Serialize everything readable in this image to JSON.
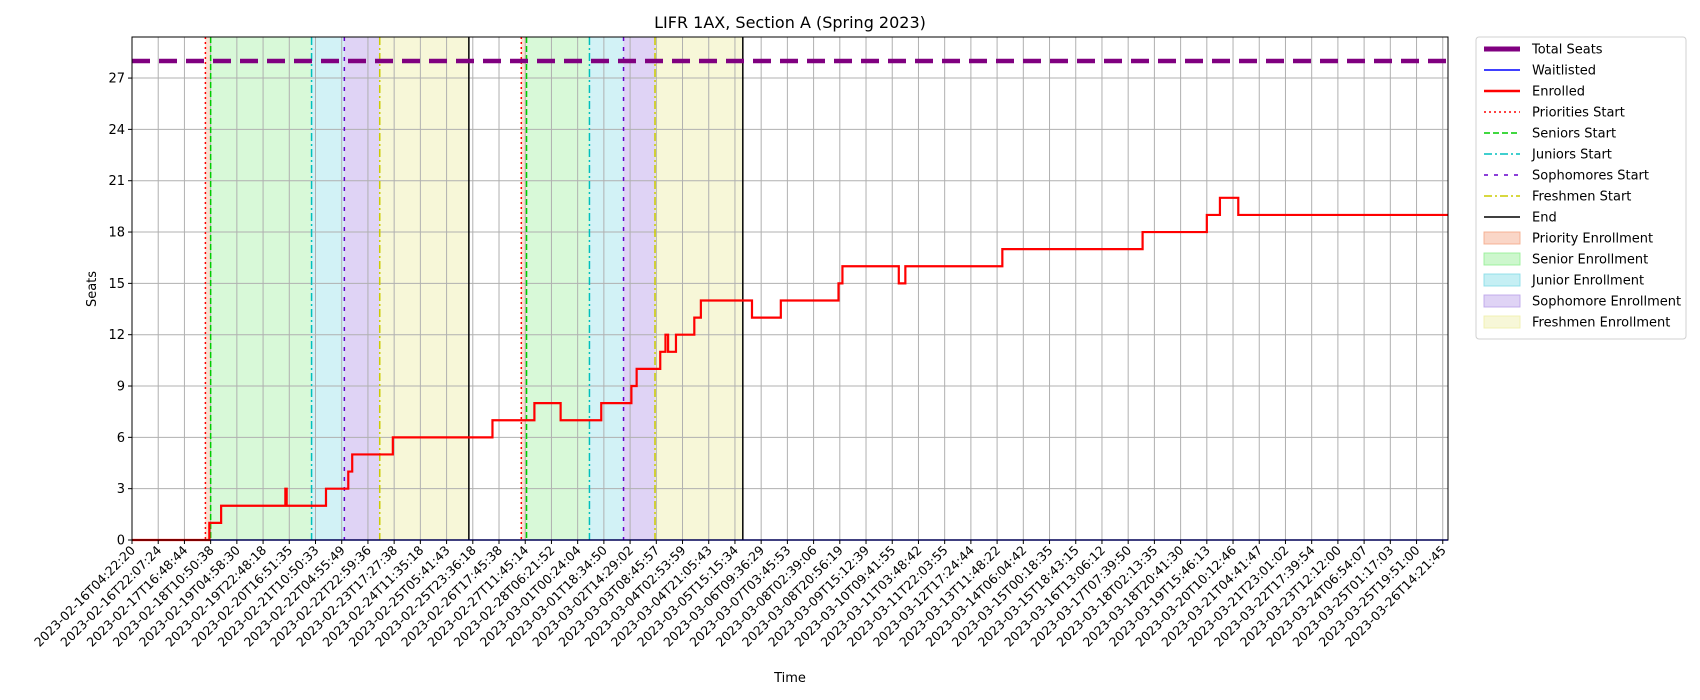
{
  "chart_data": {
    "type": "line",
    "title": "LIFR 1AX, Section A (Spring 2023)",
    "xlabel": "Time",
    "ylabel": "Seats",
    "ylim": [
      0,
      29.4
    ],
    "yticks": [
      0,
      3,
      6,
      9,
      12,
      15,
      18,
      21,
      24,
      27
    ],
    "grid": true,
    "legend_position": "outside-right",
    "x_ticks": [
      "2023-02-16T04:22:20",
      "2023-02-16T22:07:24",
      "2023-02-17T16:48:44",
      "2023-02-18T10:50:38",
      "2023-02-19T04:58:30",
      "2023-02-19T22:48:18",
      "2023-02-20T16:51:35",
      "2023-02-21T10:50:33",
      "2023-02-22T04:55:49",
      "2023-02-22T22:59:36",
      "2023-02-23T17:27:38",
      "2023-02-24T11:35:18",
      "2023-02-25T05:41:43",
      "2023-02-25T23:36:18",
      "2023-02-26T17:45:38",
      "2023-02-27T11:45:14",
      "2023-02-28T06:21:52",
      "2023-03-01T00:24:04",
      "2023-03-01T18:34:50",
      "2023-03-02T14:29:02",
      "2023-03-03T08:45:57",
      "2023-03-04T02:53:59",
      "2023-03-04T21:05:43",
      "2023-03-05T15:15:34",
      "2023-03-06T09:36:29",
      "2023-03-07T03:45:53",
      "2023-03-08T02:39:06",
      "2023-03-08T20:56:19",
      "2023-03-09T15:12:39",
      "2023-03-10T09:41:55",
      "2023-03-11T03:48:42",
      "2023-03-11T22:03:55",
      "2023-03-12T17:24:44",
      "2023-03-13T11:48:22",
      "2023-03-14T06:04:42",
      "2023-03-15T00:18:35",
      "2023-03-15T18:43:15",
      "2023-03-16T13:06:12",
      "2023-03-17T07:39:50",
      "2023-03-18T02:13:35",
      "2023-03-18T20:41:30",
      "2023-03-19T15:46:13",
      "2023-03-20T10:12:46",
      "2023-03-21T04:41:47",
      "2023-03-21T23:01:02",
      "2023-03-22T17:39:54",
      "2023-03-23T12:12:00",
      "2023-03-24T06:54:07",
      "2023-03-25T01:17:03",
      "2023-03-25T19:51:00",
      "2023-03-26T14:21:45"
    ],
    "series": [
      {
        "name": "Total Seats",
        "color": "#800080",
        "style": "dashed-thick",
        "values": [
          [
            0,
            28
          ],
          [
            50.2,
            28
          ]
        ]
      },
      {
        "name": "Waitlisted",
        "color": "#0000ff",
        "style": "solid",
        "values": [
          [
            0,
            0
          ],
          [
            50.2,
            0
          ]
        ]
      },
      {
        "name": "Enrolled",
        "color": "#ff0000",
        "style": "step",
        "values": [
          [
            0,
            0
          ],
          [
            2.95,
            0
          ],
          [
            2.95,
            1
          ],
          [
            3.4,
            1
          ],
          [
            3.4,
            2
          ],
          [
            5.85,
            2
          ],
          [
            5.85,
            3
          ],
          [
            5.9,
            3
          ],
          [
            5.9,
            2
          ],
          [
            7.4,
            2
          ],
          [
            7.4,
            3
          ],
          [
            8.25,
            3
          ],
          [
            8.25,
            4
          ],
          [
            8.4,
            4
          ],
          [
            8.4,
            5
          ],
          [
            9.95,
            5
          ],
          [
            9.95,
            6
          ],
          [
            13.75,
            6
          ],
          [
            13.75,
            7
          ],
          [
            15.35,
            7
          ],
          [
            15.35,
            8
          ],
          [
            16.35,
            8
          ],
          [
            16.35,
            7
          ],
          [
            17.9,
            7
          ],
          [
            17.9,
            8
          ],
          [
            19.05,
            8
          ],
          [
            19.05,
            9
          ],
          [
            19.25,
            9
          ],
          [
            19.25,
            10
          ],
          [
            20.15,
            10
          ],
          [
            20.15,
            11
          ],
          [
            20.35,
            11
          ],
          [
            20.35,
            12
          ],
          [
            20.45,
            12
          ],
          [
            20.45,
            11
          ],
          [
            20.75,
            11
          ],
          [
            20.75,
            12
          ],
          [
            21.45,
            12
          ],
          [
            21.45,
            13
          ],
          [
            21.7,
            13
          ],
          [
            21.7,
            14
          ],
          [
            23.65,
            14
          ],
          [
            23.65,
            13
          ],
          [
            24.75,
            13
          ],
          [
            24.75,
            14
          ],
          [
            26.95,
            14
          ],
          [
            26.95,
            15
          ],
          [
            27.1,
            15
          ],
          [
            27.1,
            16
          ],
          [
            29.25,
            16
          ],
          [
            29.25,
            15
          ],
          [
            29.5,
            15
          ],
          [
            29.5,
            16
          ],
          [
            33.2,
            16
          ],
          [
            33.2,
            17
          ],
          [
            38.55,
            17
          ],
          [
            38.55,
            18
          ],
          [
            41.0,
            18
          ],
          [
            41.0,
            19
          ],
          [
            41.5,
            19
          ],
          [
            41.5,
            20
          ],
          [
            42.2,
            20
          ],
          [
            42.2,
            19
          ],
          [
            50.2,
            19
          ]
        ]
      }
    ],
    "phase_lines": [
      {
        "name": "Priorities Start",
        "color": "#ff0000",
        "style": "dotted",
        "x": [
          2.8,
          14.85
        ]
      },
      {
        "name": "Seniors Start",
        "color": "#00cc00",
        "style": "dashed",
        "x": [
          3.0,
          15.05
        ]
      },
      {
        "name": "Juniors Start",
        "color": "#00bfbf",
        "style": "dashdot",
        "x": [
          6.85,
          17.45
        ]
      },
      {
        "name": "Sophomores Start",
        "color": "#6600cc",
        "style": "loosedash",
        "x": [
          8.1,
          18.75
        ]
      },
      {
        "name": "Freshmen Start",
        "color": "#cccc00",
        "style": "dashdot",
        "x": [
          9.45,
          19.95
        ]
      },
      {
        "name": "End",
        "color": "#000000",
        "style": "solid",
        "x": [
          12.85,
          23.3
        ]
      }
    ],
    "phase_regions": [
      {
        "name": "Priority Enrollment",
        "color": "#f4a582",
        "opacity": 0.35,
        "spans": [
          [
            2.8,
            3.0
          ],
          [
            14.85,
            15.05
          ]
        ]
      },
      {
        "name": "Senior Enrollment",
        "color": "#90ee90",
        "opacity": 0.35,
        "spans": [
          [
            3.0,
            6.85
          ],
          [
            15.05,
            17.45
          ]
        ]
      },
      {
        "name": "Junior Enrollment",
        "color": "#7fdbe6",
        "opacity": 0.35,
        "spans": [
          [
            6.85,
            8.1
          ],
          [
            17.45,
            18.75
          ]
        ]
      },
      {
        "name": "Sophomore Enrollment",
        "color": "#b89ee8",
        "opacity": 0.45,
        "spans": [
          [
            8.1,
            9.45
          ],
          [
            18.75,
            19.95
          ]
        ]
      },
      {
        "name": "Freshmen Enrollment",
        "color": "#eeeea8",
        "opacity": 0.45,
        "spans": [
          [
            9.45,
            12.85
          ],
          [
            19.95,
            23.3
          ]
        ]
      }
    ],
    "legend": [
      {
        "label": "Total Seats",
        "kind": "line",
        "color": "#800080",
        "style": "thick"
      },
      {
        "label": "Waitlisted",
        "kind": "line",
        "color": "#0000ff",
        "style": "solid"
      },
      {
        "label": "Enrolled",
        "kind": "line",
        "color": "#ff0000",
        "style": "bold"
      },
      {
        "label": "Priorities Start",
        "kind": "line",
        "color": "#ff0000",
        "style": "dotted"
      },
      {
        "label": "Seniors Start",
        "kind": "line",
        "color": "#00cc00",
        "style": "dashed"
      },
      {
        "label": "Juniors Start",
        "kind": "line",
        "color": "#00bfbf",
        "style": "dashdot"
      },
      {
        "label": "Sophomores Start",
        "kind": "line",
        "color": "#6600cc",
        "style": "loosedash"
      },
      {
        "label": "Freshmen Start",
        "kind": "line",
        "color": "#cccc00",
        "style": "dashdot"
      },
      {
        "label": "End",
        "kind": "line",
        "color": "#000000",
        "style": "solid"
      },
      {
        "label": "Priority Enrollment",
        "kind": "patch",
        "color": "#f4a582"
      },
      {
        "label": "Senior Enrollment",
        "kind": "patch",
        "color": "#90ee90"
      },
      {
        "label": "Junior Enrollment",
        "kind": "patch",
        "color": "#7fdbe6"
      },
      {
        "label": "Sophomore Enrollment",
        "kind": "patch",
        "color": "#b89ee8"
      },
      {
        "label": "Freshmen Enrollment",
        "kind": "patch",
        "color": "#eeeea8"
      }
    ]
  }
}
